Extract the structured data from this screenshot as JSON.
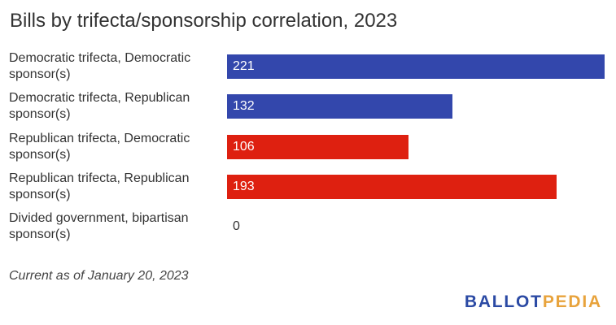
{
  "title": "Bills by trifecta/sponsorship correlation, 2023",
  "note": "Current as of January 20, 2023",
  "logo": {
    "part1": "BALLOT",
    "part2": "PEDIA",
    "color1": "#2b4aa4",
    "color2": "#e8a33c"
  },
  "colors": {
    "democratic": "#3347ac",
    "republican": "#de2010"
  },
  "chart_data": {
    "type": "bar",
    "orientation": "horizontal",
    "title": "Bills by trifecta/sponsorship correlation, 2023",
    "categories": [
      "Democratic trifecta, Democratic sponsor(s)",
      "Democratic trifecta, Republican sponsor(s)",
      "Republican trifecta, Democratic sponsor(s)",
      "Republican trifecta, Republican sponsor(s)",
      "Divided government, bipartisan sponsor(s)"
    ],
    "values": [
      221,
      132,
      106,
      193,
      0
    ],
    "bar_colors": [
      "#3347ac",
      "#3347ac",
      "#de2010",
      "#de2010",
      "#3347ac"
    ],
    "xlim": [
      0,
      221
    ],
    "data_labels": true,
    "grid": false,
    "legend": "none"
  }
}
